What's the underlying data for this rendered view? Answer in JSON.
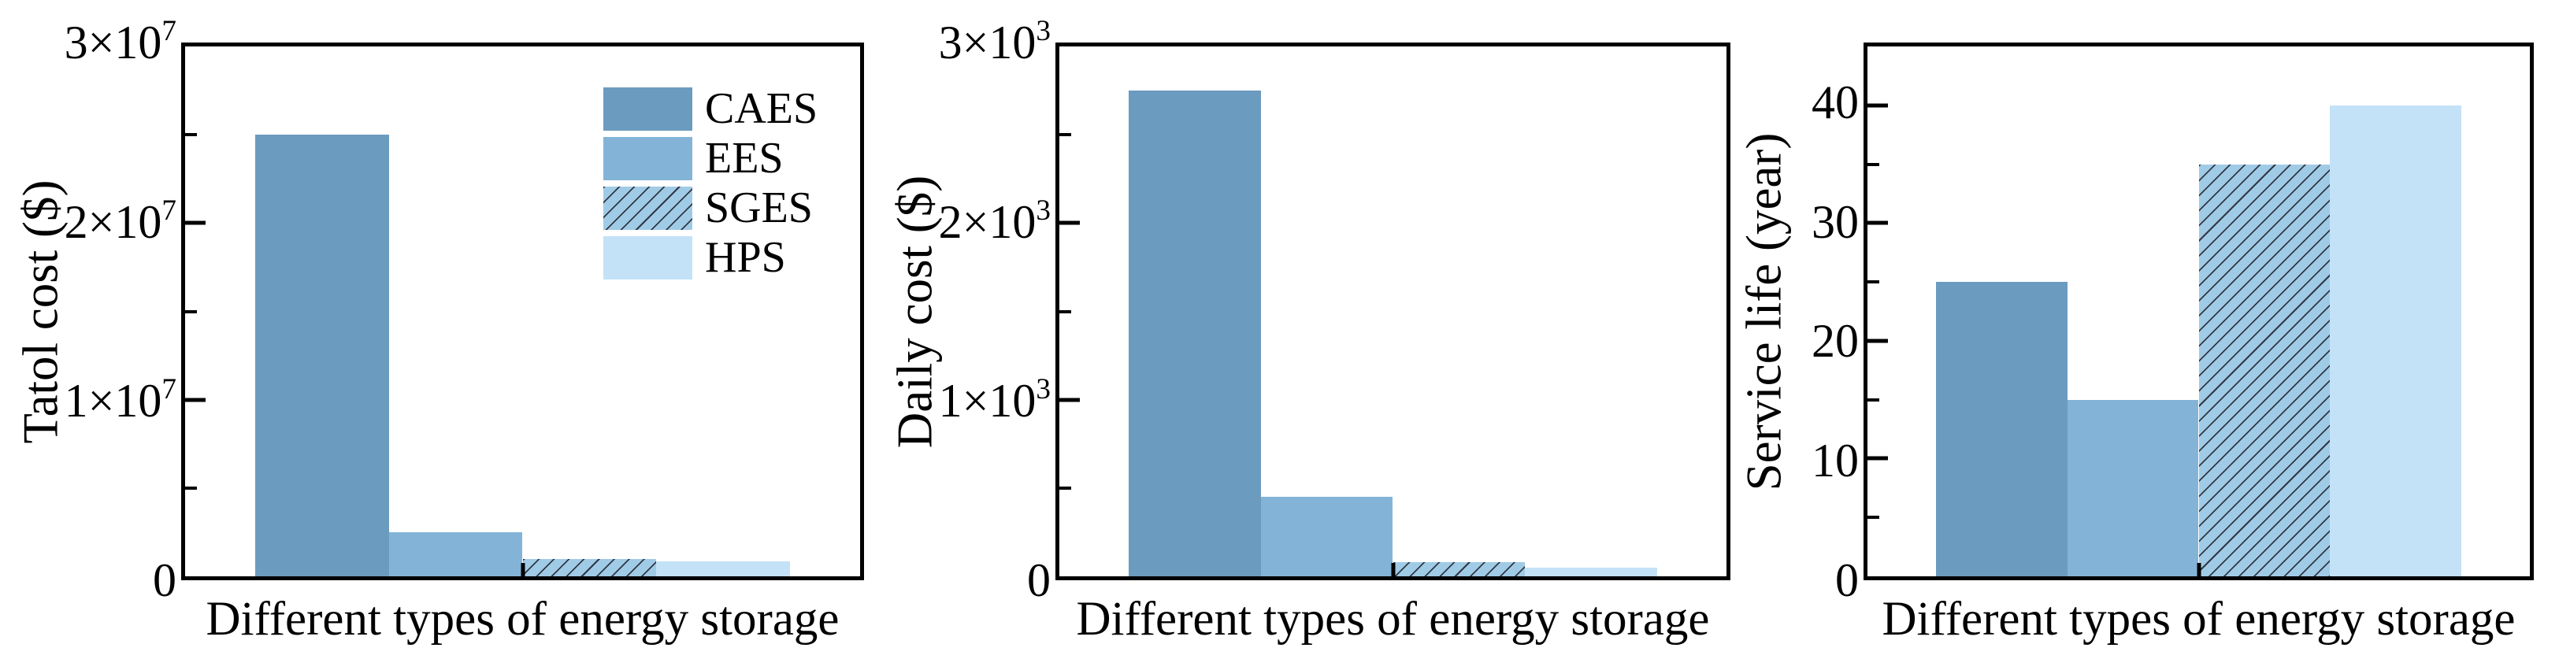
{
  "figure": {
    "background": "#ffffff",
    "frame_color": "#000000",
    "text_color": "#000000"
  },
  "legend": {
    "position": "inside-top-right-of-first-chart",
    "entries": [
      {
        "label": "CAES",
        "color": "#6c9bc0",
        "hatch": false
      },
      {
        "label": "EES",
        "color": "#83b4d7",
        "hatch": false
      },
      {
        "label": "SGES",
        "color": "#a0cbe6",
        "hatch": true
      },
      {
        "label": "HPS",
        "color": "#c3e2f8",
        "hatch": false
      }
    ]
  },
  "chart_data": [
    {
      "type": "bar",
      "ylabel": "Tatol cost ($)",
      "xlabel": "Different types of energy storage",
      "categories": [
        "CAES",
        "EES",
        "SGES",
        "HPS"
      ],
      "values": [
        25000000,
        2500000,
        1000000,
        850000
      ],
      "ylim": [
        0,
        30000000
      ],
      "yticks": [
        {
          "v": 30000000,
          "base": "3×10",
          "sup": "7"
        },
        {
          "v": 20000000,
          "base": "2×10",
          "sup": "7"
        },
        {
          "v": 10000000,
          "base": "1×10",
          "sup": "7"
        },
        {
          "v": 0,
          "base": "0",
          "sup": ""
        }
      ],
      "minor_yticks": [
        25000000,
        15000000,
        5000000
      ],
      "grid": false,
      "legend_visible": true
    },
    {
      "type": "bar",
      "ylabel": "Daily cost ($)",
      "xlabel": "Different types of energy storage",
      "categories": [
        "CAES",
        "EES",
        "SGES",
        "HPS"
      ],
      "values": [
        2750,
        450,
        80,
        50
      ],
      "ylim": [
        0,
        3000
      ],
      "yticks": [
        {
          "v": 3000,
          "base": "3×10",
          "sup": "3"
        },
        {
          "v": 2000,
          "base": "2×10",
          "sup": "3"
        },
        {
          "v": 1000,
          "base": "1×10",
          "sup": "3"
        },
        {
          "v": 0,
          "base": "0",
          "sup": ""
        }
      ],
      "minor_yticks": [
        2500,
        1500,
        500
      ],
      "grid": false,
      "legend_visible": false
    },
    {
      "type": "bar",
      "ylabel": "Service life (year)",
      "xlabel": "Different types of energy storage",
      "categories": [
        "CAES",
        "EES",
        "SGES",
        "HPS"
      ],
      "values": [
        25,
        15,
        35,
        40
      ],
      "ylim": [
        0,
        45
      ],
      "yticks": [
        {
          "v": 40,
          "base": "40",
          "sup": ""
        },
        {
          "v": 30,
          "base": "30",
          "sup": ""
        },
        {
          "v": 20,
          "base": "20",
          "sup": ""
        },
        {
          "v": 10,
          "base": "10",
          "sup": ""
        },
        {
          "v": 0,
          "base": "0",
          "sup": ""
        }
      ],
      "minor_yticks": [
        35,
        25,
        15,
        5
      ],
      "grid": false,
      "legend_visible": false
    }
  ]
}
